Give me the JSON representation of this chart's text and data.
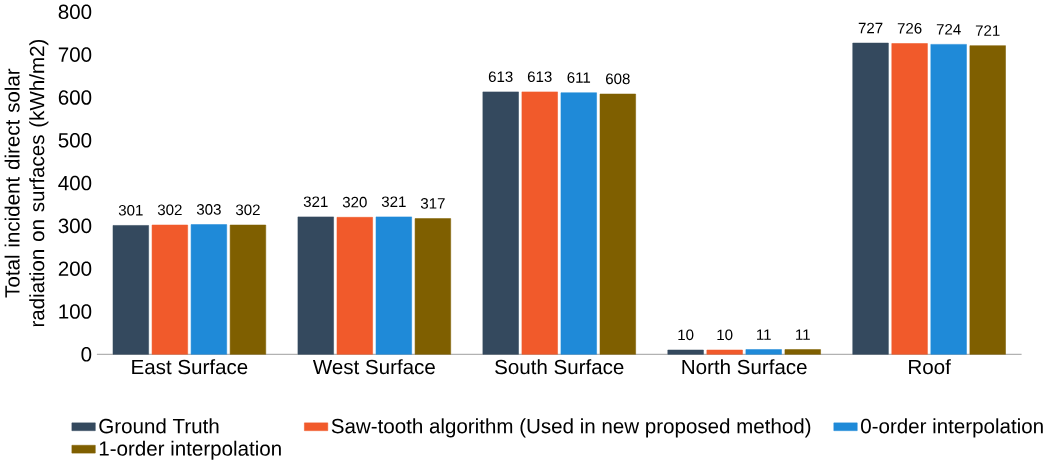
{
  "chart_data": {
    "type": "bar",
    "ylabel": "Total incident direct solar radiation on surfaces (kWh/m2)",
    "categories": [
      "East Surface",
      "West Surface",
      "South Surface",
      "North Surface",
      "Roof"
    ],
    "series": [
      {
        "name": "Ground Truth",
        "color": "#34495e",
        "values": [
          301,
          321,
          613,
          10,
          727
        ]
      },
      {
        "name": "Saw-tooth algorithm (Used in new proposed method)",
        "color": "#f15a2b",
        "values": [
          302,
          320,
          613,
          10,
          726
        ]
      },
      {
        "name": "0-order interpolation",
        "color": "#1f8ad8",
        "values": [
          303,
          321,
          611,
          11,
          724
        ]
      },
      {
        "name": "1-order interpolation",
        "color": "#7f5f00",
        "values": [
          302,
          317,
          608,
          11,
          721
        ]
      }
    ],
    "ylim": [
      0,
      800
    ],
    "yticks": [
      0,
      100,
      200,
      300,
      400,
      500,
      600,
      700,
      800
    ],
    "data_labels": true,
    "grid": false,
    "legend": "bottom"
  }
}
